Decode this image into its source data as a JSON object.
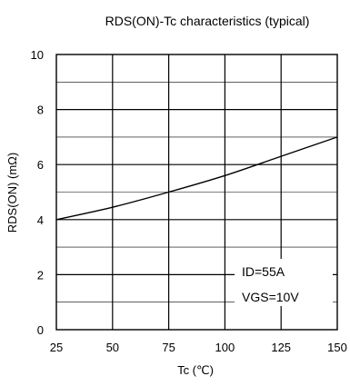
{
  "chart_data": {
    "type": "line",
    "title": "RDS(ON)-Tc characteristics (typical)",
    "xlabel": "Tc (℃)",
    "ylabel": "RDS(ON) (mΩ)",
    "xlim": [
      25,
      150
    ],
    "ylim": [
      0,
      10
    ],
    "xticks": [
      25,
      50,
      75,
      100,
      125,
      150
    ],
    "yticks": [
      0,
      2,
      4,
      6,
      8,
      10
    ],
    "grid": true,
    "series": [
      {
        "x": [
          25,
          50,
          75,
          100,
          125,
          150
        ],
        "y": [
          4.0,
          4.45,
          5.0,
          5.6,
          6.3,
          7.0
        ]
      }
    ],
    "annotations": [
      "ID=55A",
      "VGS=10V"
    ]
  }
}
